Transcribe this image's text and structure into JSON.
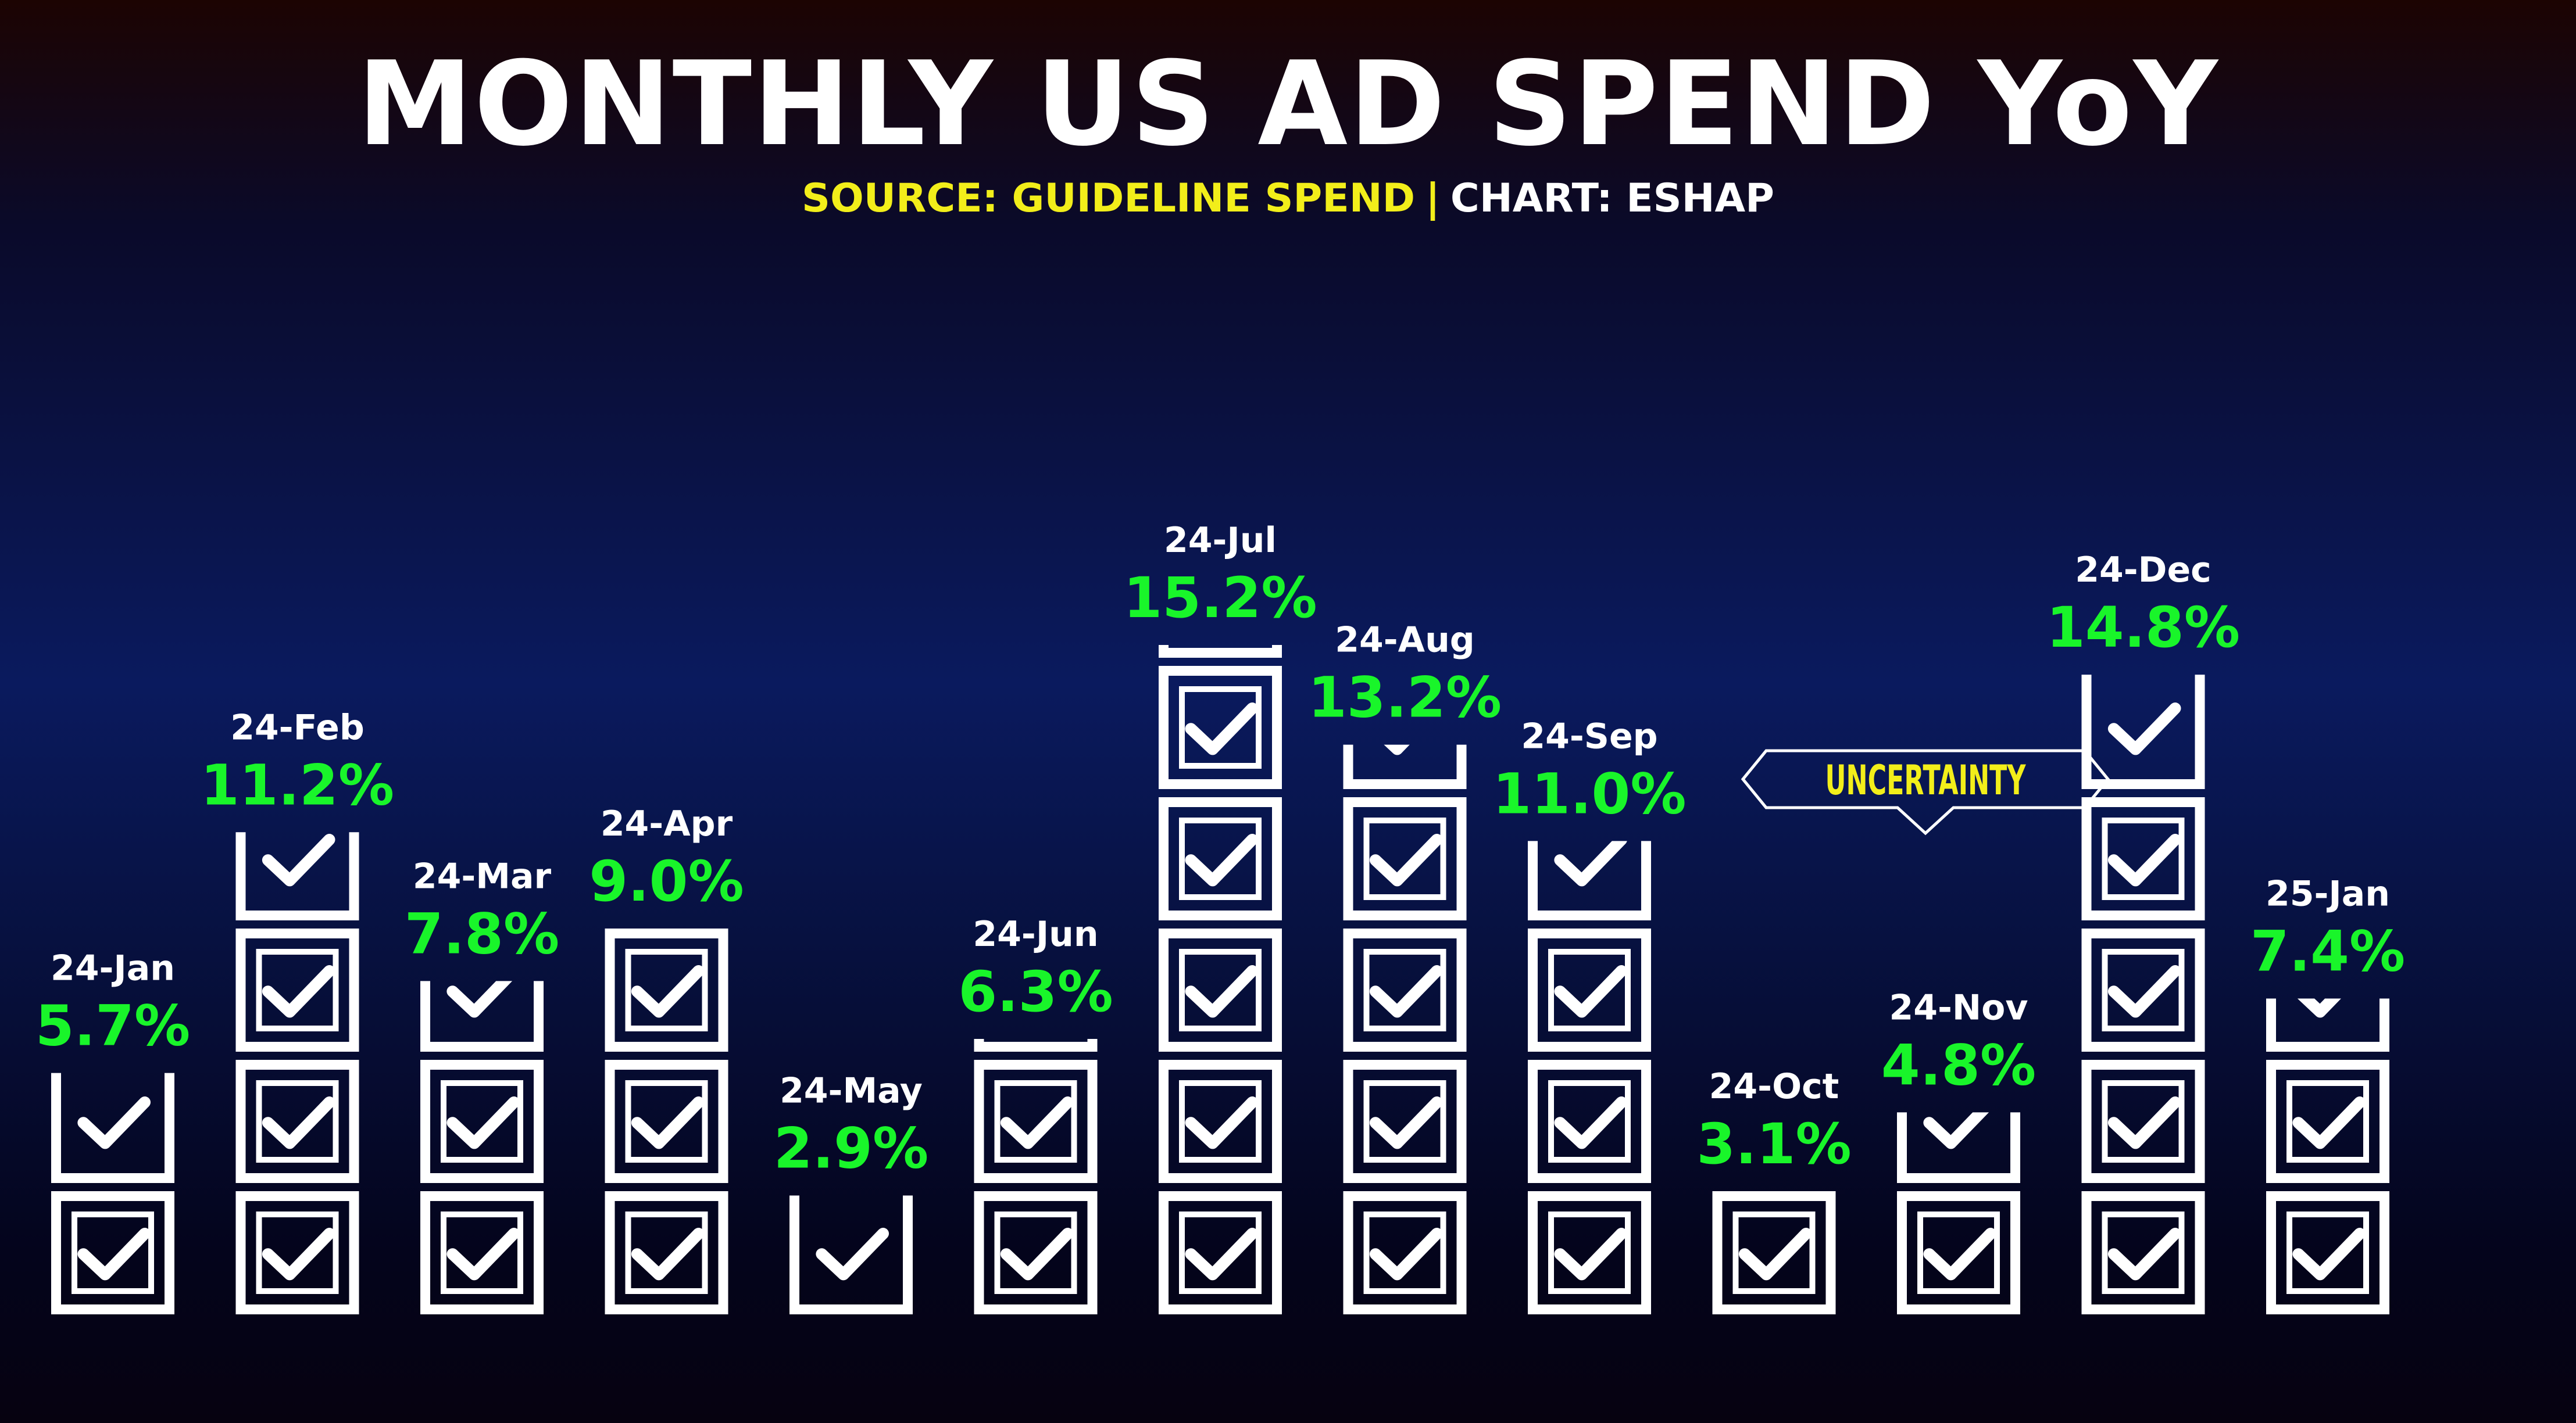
{
  "header": {
    "title": "MONTHLY US AD SPEND YoY",
    "source": "SOURCE: GUIDELINE SPEND",
    "separator": "|",
    "credit": "CHART: ESHAP"
  },
  "annotation": {
    "text": "UNCERTAINTY",
    "text_color": "#f2ee1a"
  },
  "colors": {
    "value_label": "#19f52a",
    "category_label": "#ffffff",
    "checkbox": "#ffffff"
  },
  "chart_data": {
    "type": "bar",
    "title": "MONTHLY US AD SPEND YoY",
    "xlabel": "",
    "ylabel": "",
    "units_per_box": 3,
    "categories": [
      "24-Jan",
      "24-Feb",
      "24-Mar",
      "24-Apr",
      "24-May",
      "24-Jun",
      "24-Jul",
      "24-Aug",
      "24-Sep",
      "24-Oct",
      "24-Nov",
      "24-Dec",
      "25-Jan"
    ],
    "values": [
      5.7,
      11.2,
      7.8,
      9.0,
      2.9,
      6.3,
      15.2,
      13.2,
      11.0,
      3.1,
      4.8,
      14.8,
      7.4
    ],
    "value_labels": [
      "5.7%",
      "11.2%",
      "7.8%",
      "9.0%",
      "2.9%",
      "6.3%",
      "15.2%",
      "13.2%",
      "11.0%",
      "3.1%",
      "4.8%",
      "14.8%",
      "7.4%"
    ]
  }
}
